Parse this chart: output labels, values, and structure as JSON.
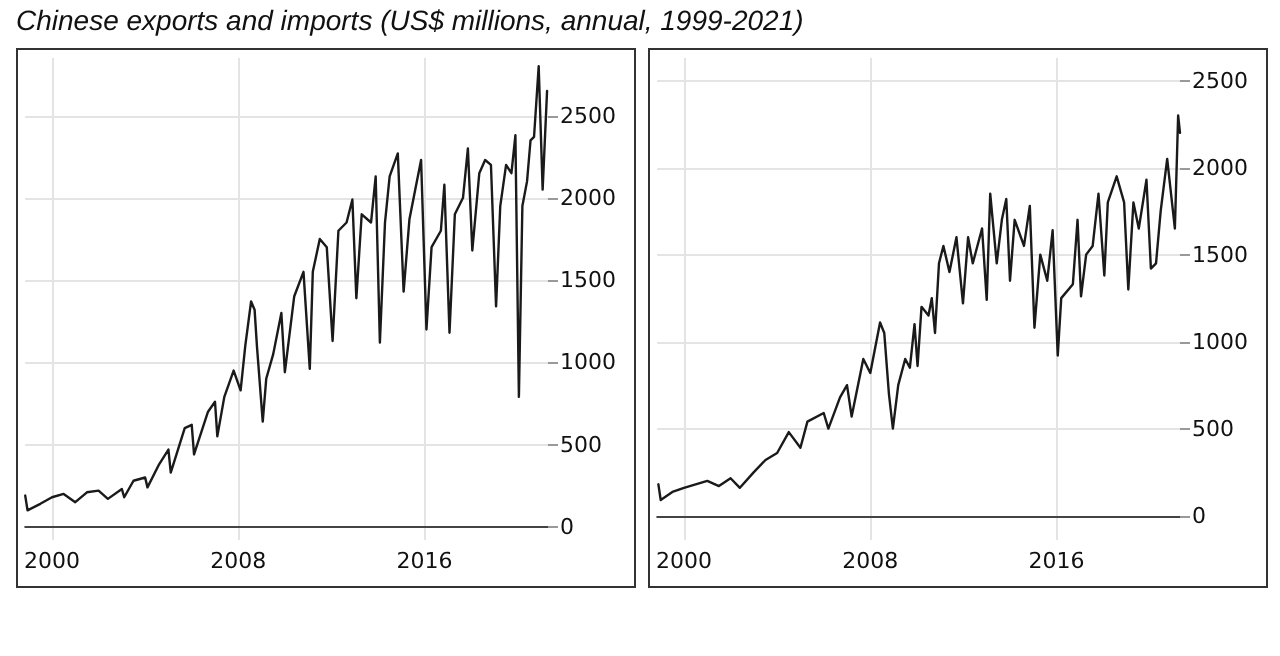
{
  "chart_data": [
    {
      "type": "line",
      "title": "Chinese exports and imports (US$ millions, annual, 1999-2021)",
      "x": [
        1998.85,
        1998.95,
        1999.5,
        2000.0,
        2000.5,
        2001.0,
        2001.5,
        2002.0,
        2002.4,
        2003.0,
        2003.1,
        2003.5,
        2004.0,
        2004.1,
        2004.6,
        2005.0,
        2005.1,
        2005.7,
        2006.0,
        2006.1,
        2006.7,
        2007.0,
        2007.1,
        2007.4,
        2007.8,
        2008.1,
        2008.3,
        2008.55,
        2008.7,
        2008.8,
        2009.05,
        2009.2,
        2009.5,
        2009.85,
        2010.0,
        2010.4,
        2010.8,
        2011.07,
        2011.2,
        2011.5,
        2011.8,
        2012.05,
        2012.3,
        2012.65,
        2012.9,
        2013.07,
        2013.3,
        2013.7,
        2013.9,
        2014.08,
        2014.3,
        2014.5,
        2014.85,
        2015.1,
        2015.35,
        2015.6,
        2015.85,
        2016.08,
        2016.3,
        2016.7,
        2016.85,
        2017.07,
        2017.3,
        2017.65,
        2017.86,
        2018.05,
        2018.35,
        2018.6,
        2018.85,
        2019.07,
        2019.25,
        2019.5,
        2019.73,
        2019.9,
        2020.05,
        2020.2,
        2020.4,
        2020.55,
        2020.7,
        2020.9,
        2021.07,
        2021.26
      ],
      "series": [
        {
          "color": "#1a1a1a",
          "values": [
            190,
            100,
            140,
            180,
            200,
            150,
            210,
            220,
            170,
            230,
            180,
            280,
            300,
            240,
            380,
            470,
            330,
            600,
            620,
            440,
            700,
            760,
            550,
            790,
            950,
            830,
            1100,
            1370,
            1320,
            1100,
            640,
            900,
            1050,
            1300,
            940,
            1400,
            1550,
            960,
            1550,
            1750,
            1700,
            1130,
            1800,
            1850,
            1990,
            1390,
            1900,
            1850,
            2130,
            1120,
            1850,
            2130,
            2270,
            1430,
            1870,
            2050,
            2230,
            1200,
            1700,
            1800,
            2080,
            1180,
            1900,
            2000,
            2300,
            1680,
            2150,
            2230,
            2200,
            1340,
            1950,
            2200,
            2150,
            2380,
            790,
            1950,
            2100,
            2350,
            2370,
            2800,
            2050,
            2650
          ]
        }
      ],
      "xlim": [
        1998.85,
        2021.3
      ],
      "xticks": [
        2000,
        2008,
        2016
      ],
      "ylim": [
        -80,
        2850
      ],
      "yticks": [
        0,
        500,
        1000,
        1500,
        2000,
        2500
      ],
      "grid": true,
      "marker": "none",
      "line_style": "solid"
    },
    {
      "type": "line",
      "x": [
        1998.9,
        1999.0,
        1999.5,
        2000.0,
        2000.5,
        2001.0,
        2001.5,
        2002.0,
        2002.4,
        2003.0,
        2003.5,
        2004.0,
        2004.5,
        2005.0,
        2005.3,
        2006.0,
        2006.2,
        2006.7,
        2007.0,
        2007.2,
        2007.7,
        2008.0,
        2008.42,
        2008.6,
        2008.8,
        2008.97,
        2009.2,
        2009.5,
        2009.7,
        2009.9,
        2010.03,
        2010.2,
        2010.5,
        2010.64,
        2010.78,
        2010.95,
        2011.14,
        2011.4,
        2011.7,
        2011.98,
        2012.2,
        2012.4,
        2012.8,
        2013.0,
        2013.15,
        2013.43,
        2013.65,
        2013.84,
        2014.0,
        2014.2,
        2014.6,
        2014.85,
        2015.05,
        2015.3,
        2015.6,
        2015.83,
        2016.05,
        2016.2,
        2016.7,
        2016.9,
        2017.05,
        2017.27,
        2017.55,
        2017.8,
        2018.05,
        2018.2,
        2018.58,
        2018.9,
        2019.08,
        2019.3,
        2019.53,
        2019.86,
        2020.05,
        2020.27,
        2020.47,
        2020.75,
        2021.08,
        2021.22,
        2021.3
      ],
      "series": [
        {
          "color": "#1a1a1a",
          "values": [
            180,
            90,
            136,
            160,
            180,
            200,
            170,
            215,
            160,
            250,
            320,
            360,
            480,
            390,
            540,
            590,
            500,
            680,
            750,
            570,
            900,
            820,
            1110,
            1050,
            700,
            500,
            750,
            900,
            850,
            1100,
            860,
            1200,
            1150,
            1250,
            1050,
            1450,
            1550,
            1400,
            1600,
            1220,
            1600,
            1450,
            1650,
            1240,
            1850,
            1450,
            1700,
            1820,
            1350,
            1700,
            1550,
            1780,
            1080,
            1500,
            1350,
            1640,
            920,
            1250,
            1330,
            1700,
            1260,
            1500,
            1550,
            1850,
            1380,
            1800,
            1950,
            1800,
            1300,
            1800,
            1650,
            1930,
            1420,
            1450,
            1750,
            2050,
            1650,
            2300,
            2200
          ]
        }
      ],
      "xlim": [
        1998.85,
        2021.3
      ],
      "xticks": [
        2000,
        2008,
        2016
      ],
      "ylim": [
        -140,
        2630
      ],
      "yticks": [
        0,
        500,
        1000,
        1500,
        2000,
        2500
      ],
      "grid": true,
      "marker": "none",
      "line_style": "solid"
    }
  ]
}
